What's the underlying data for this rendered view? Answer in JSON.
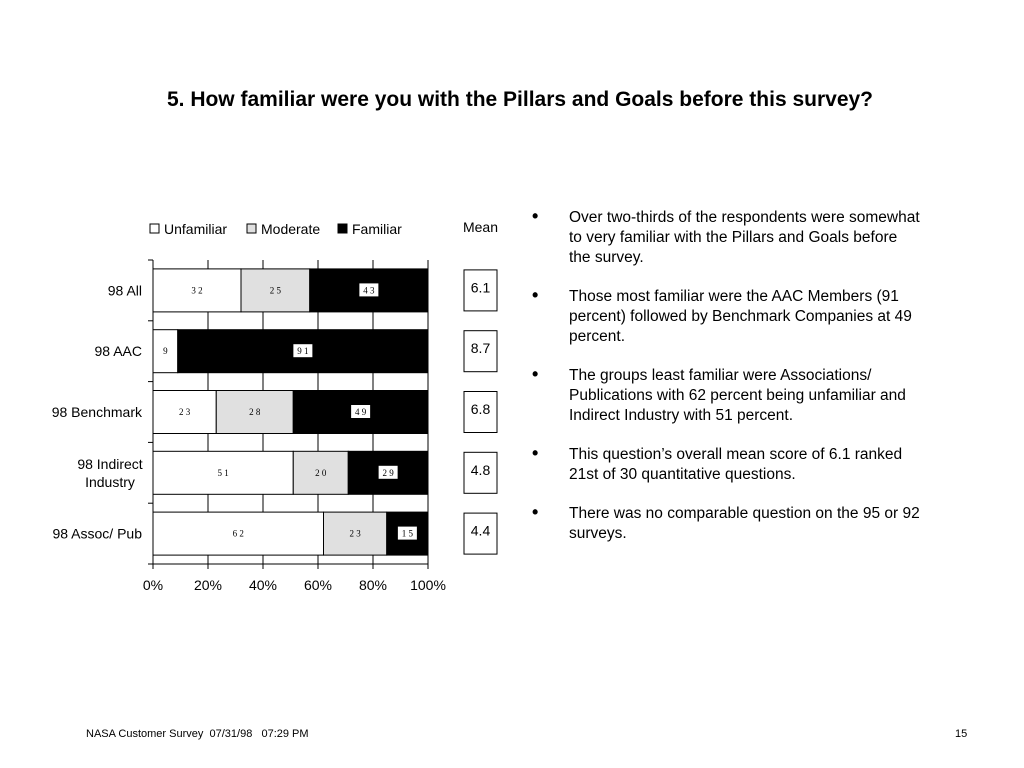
{
  "title": "5.  How familiar were you with the Pillars and Goals before this survey?",
  "chart_data": {
    "type": "bar",
    "orientation": "horizontal",
    "stacked": "percent",
    "categories": [
      "98 All",
      "98 AAC",
      "98 Benchmark",
      "98 Indirect\nIndustry",
      "98 Assoc/ Pub"
    ],
    "series": [
      {
        "name": "Unfamiliar",
        "color": "#ffffff",
        "values": [
          32,
          9,
          23,
          51,
          62
        ]
      },
      {
        "name": "Moderate",
        "color": "#e0e0e0",
        "values": [
          25,
          0,
          28,
          20,
          23
        ]
      },
      {
        "name": "Familiar",
        "color": "#000000",
        "values": [
          43,
          91,
          49,
          29,
          15
        ]
      }
    ],
    "xticks": [
      "0%",
      "20%",
      "40%",
      "60%",
      "80%",
      "100%"
    ],
    "xlim": [
      0,
      100
    ],
    "legend_position": "top",
    "grid": true,
    "mean_header": "Mean",
    "means": [
      "6.1",
      "8.7",
      "6.8",
      "4.8",
      "4.4"
    ]
  },
  "bullets": [
    "Over two-thirds of the respondents were somewhat to very familiar with the Pillars and Goals before the survey.",
    "Those most familiar were the AAC Members (91 percent) followed by Benchmark Companies at 49 percent.",
    "The groups least familiar were Associations/ Publications with 62 percent being unfamiliar and Indirect Industry with 51 percent.",
    "This question’s overall mean score of 6.1 ranked 21st of 30 quantitative questions.",
    "There was no comparable question on the 95 or 92 surveys."
  ],
  "bullet_symbol": "•",
  "footer": {
    "left": "NASA Customer Survey  07/31/98   07:29 PM",
    "page": "15"
  }
}
